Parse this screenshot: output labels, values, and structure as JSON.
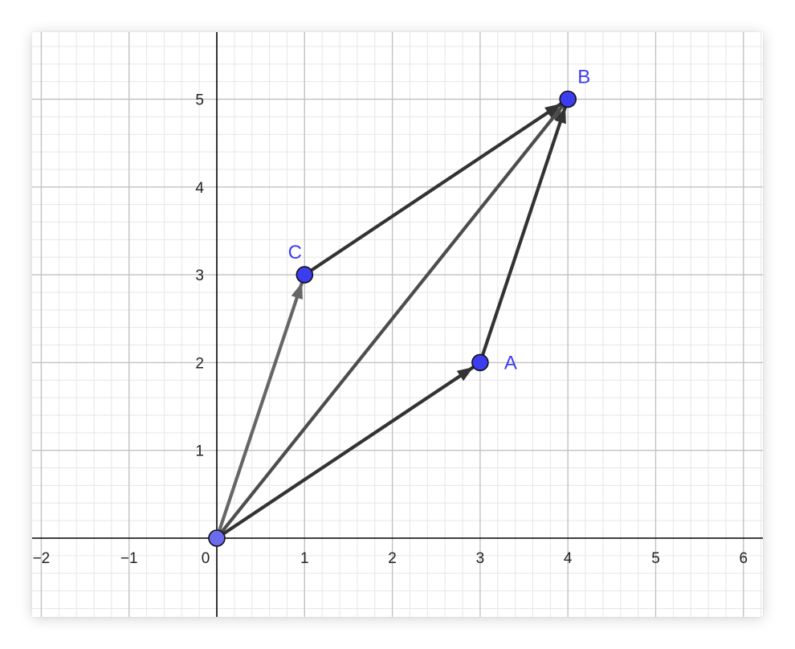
{
  "graph": {
    "axes": {
      "x_ticks": [
        "−2",
        "−1",
        "0",
        "1",
        "2",
        "3",
        "4",
        "5",
        "6"
      ],
      "y_ticks": [
        "1",
        "2",
        "3",
        "4",
        "5"
      ],
      "x_range": [
        -2.1,
        6.2
      ],
      "y_range": [
        -0.9,
        5.8
      ]
    },
    "points": [
      {
        "label": "",
        "x": 0,
        "y": 0,
        "color": "#6b6bef"
      },
      {
        "label": "A",
        "x": 3,
        "y": 2,
        "color": "#3d3df0"
      },
      {
        "label": "B",
        "x": 4,
        "y": 5,
        "color": "#3d3df0"
      },
      {
        "label": "C",
        "x": 1,
        "y": 3,
        "color": "#3d3df0"
      }
    ],
    "vectors": [
      {
        "from": [
          0,
          0
        ],
        "to": [
          3,
          2
        ],
        "color": "#333333"
      },
      {
        "from": [
          0,
          0
        ],
        "to": [
          1,
          3
        ],
        "color": "#666666"
      },
      {
        "from": [
          0,
          0
        ],
        "to": [
          4,
          5
        ],
        "color": "#4d4d4d"
      },
      {
        "from": [
          3,
          2
        ],
        "to": [
          4,
          5
        ],
        "color": "#333333"
      },
      {
        "from": [
          1,
          3
        ],
        "to": [
          4,
          5
        ],
        "color": "#333333"
      }
    ],
    "colors": {
      "grid_major": "#c2c2c2",
      "grid_minor": "#e6e6e6",
      "axis": "#000000",
      "point_outline": "#111111",
      "label": "#3d3df0"
    }
  }
}
